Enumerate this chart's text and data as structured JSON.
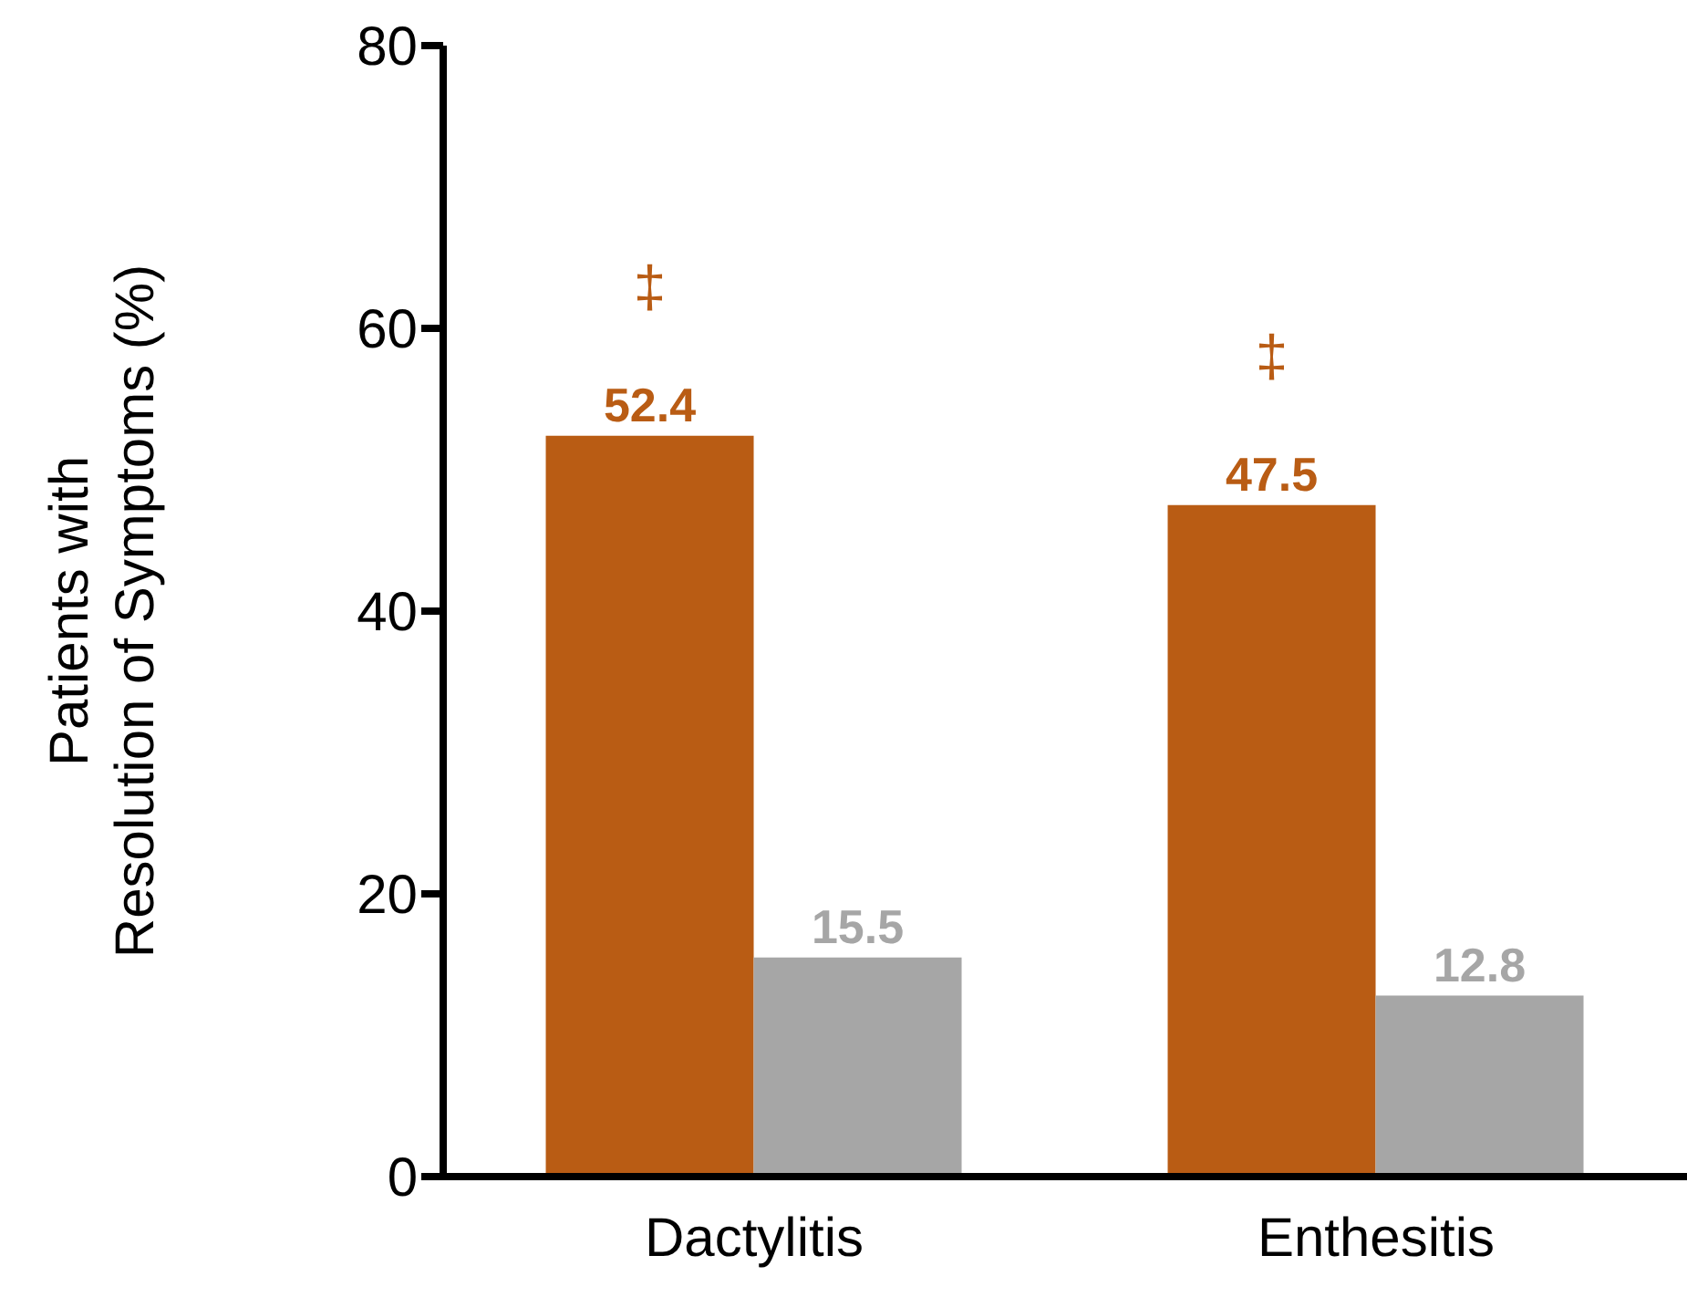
{
  "chart_data": {
    "type": "bar",
    "ylabel": "Patients with\nResolution of Symptoms (%)",
    "categories": [
      "Dactylitis",
      "Enthesitis"
    ],
    "series": [
      {
        "color": "#b95c14",
        "values": [
          52.4,
          47.5
        ]
      },
      {
        "color": "#a6a6a6",
        "values": [
          15.5,
          12.8
        ]
      }
    ],
    "ylim": [
      0,
      80
    ],
    "yticks": [
      0,
      20,
      40,
      60,
      80
    ],
    "grid": false,
    "legend": false,
    "data_labels": true,
    "annotations": [
      "‡",
      "‡"
    ]
  }
}
